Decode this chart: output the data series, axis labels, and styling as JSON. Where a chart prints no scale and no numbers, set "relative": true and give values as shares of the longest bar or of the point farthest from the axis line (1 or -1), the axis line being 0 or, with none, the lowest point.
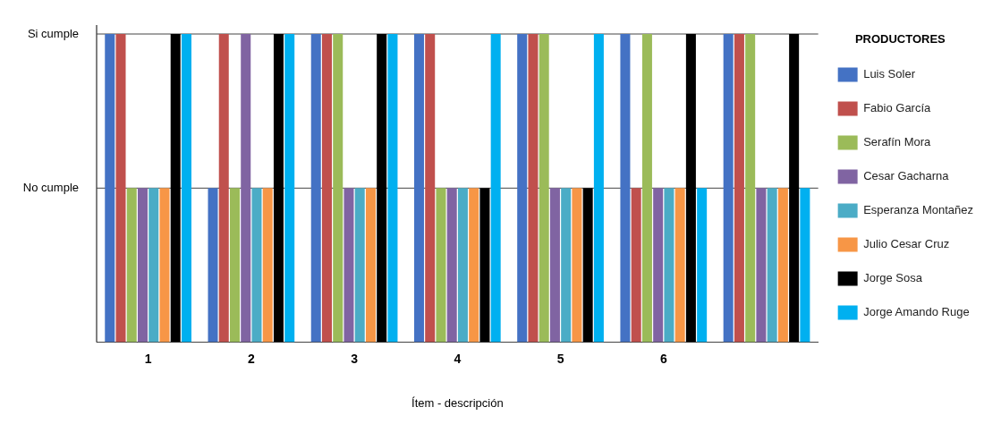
{
  "chart_data": {
    "type": "bar",
    "xlabel": "Ítem - descripción",
    "legend_title": "PRODUCTORES",
    "relative": true,
    "categories": [
      "1",
      "2",
      "3",
      "4",
      "5",
      "6",
      null
    ],
    "series": [
      {
        "name": "Luis Soler",
        "color": "#4472c4",
        "values": [
          1,
          0.5,
          1,
          1,
          1,
          1,
          1
        ]
      },
      {
        "name": "Fabio García",
        "color": "#c0504d",
        "values": [
          1,
          1,
          1,
          1,
          1,
          0.5,
          1
        ]
      },
      {
        "name": "Serafín Mora",
        "color": "#9bbb59",
        "values": [
          0.5,
          0.5,
          1,
          0.5,
          1,
          1,
          1
        ]
      },
      {
        "name": "Cesar Gacharna",
        "color": "#8064a2",
        "values": [
          0.5,
          1,
          0.5,
          0.5,
          0.5,
          0.5,
          0.5
        ]
      },
      {
        "name": "Esperanza Montañez",
        "color": "#4bacc6",
        "values": [
          0.5,
          0.5,
          0.5,
          0.5,
          0.5,
          0.5,
          0.5
        ]
      },
      {
        "name": "Julio Cesar Cruz",
        "color": "#f79646",
        "values": [
          0.5,
          0.5,
          0.5,
          0.5,
          0.5,
          0.5,
          0.5
        ]
      },
      {
        "name": "Jorge Sosa",
        "color": "#000000",
        "values": [
          1,
          1,
          1,
          0.5,
          0.5,
          1,
          1
        ]
      },
      {
        "name": "Jorge Amando Ruge",
        "color": "#00b0f0",
        "values": [
          1,
          1,
          1,
          1,
          1,
          0.5,
          0.5
        ]
      }
    ],
    "ref_lines": [
      {
        "axis": "y",
        "value": 1,
        "label": "Si cumple",
        "color": "#444444"
      },
      {
        "axis": "y",
        "value": 0.5,
        "label": "No cumple",
        "color": "#444444"
      }
    ],
    "legend": "right"
  }
}
